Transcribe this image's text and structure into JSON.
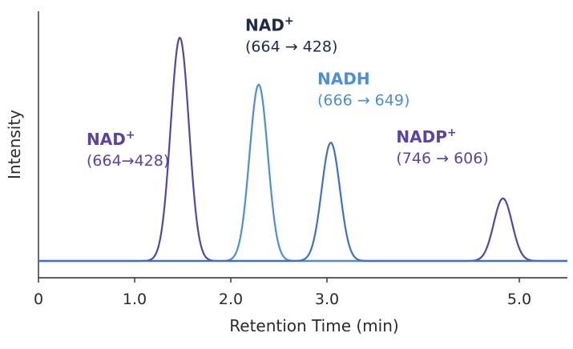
{
  "chart_data": {
    "type": "line",
    "title": "",
    "xlabel": "Retention Time (min)",
    "ylabel": "Intensity",
    "xlim": [
      0,
      5.5
    ],
    "ylim": [
      0,
      1.0
    ],
    "x_ticks": [
      0,
      1.0,
      2.0,
      3.0,
      5.0
    ],
    "x_tick_labels": [
      "0",
      "1.0",
      "2.0",
      "3.0",
      "5.0"
    ],
    "grid": false,
    "series": [
      {
        "color": "#5a43a6",
        "peaks": [
          {
            "rt": 1.47,
            "height": 1.0
          },
          {
            "rt": 4.83,
            "height": 0.28
          }
        ]
      },
      {
        "color": "#4a8fd8",
        "peaks": [
          {
            "rt": 2.29,
            "height": 0.79
          }
        ]
      },
      {
        "color": "#3f6fcc",
        "peaks": [
          {
            "rt": 3.04,
            "height": 0.53
          }
        ]
      }
    ],
    "annotations": [
      {
        "name": "NAD",
        "sup": "+",
        "transition": "(664→428)",
        "color": "#5a43a6",
        "x": 0.5,
        "y": 0.52,
        "anchor": "start"
      },
      {
        "name": "NAD",
        "sup": "+",
        "transition": "(664 → 428)",
        "color": "#1f2a4a",
        "x": 2.15,
        "y": 1.03,
        "anchor": "start"
      },
      {
        "name": "NADH",
        "sup": "",
        "transition": "(666 → 649)",
        "color": "#4a8fd8",
        "x": 2.9,
        "y": 0.79,
        "anchor": "start"
      },
      {
        "name": "NADP",
        "sup": "+",
        "transition": "(746 → 606)",
        "color": "#5a43a6",
        "x": 3.72,
        "y": 0.53,
        "anchor": "start"
      }
    ]
  }
}
